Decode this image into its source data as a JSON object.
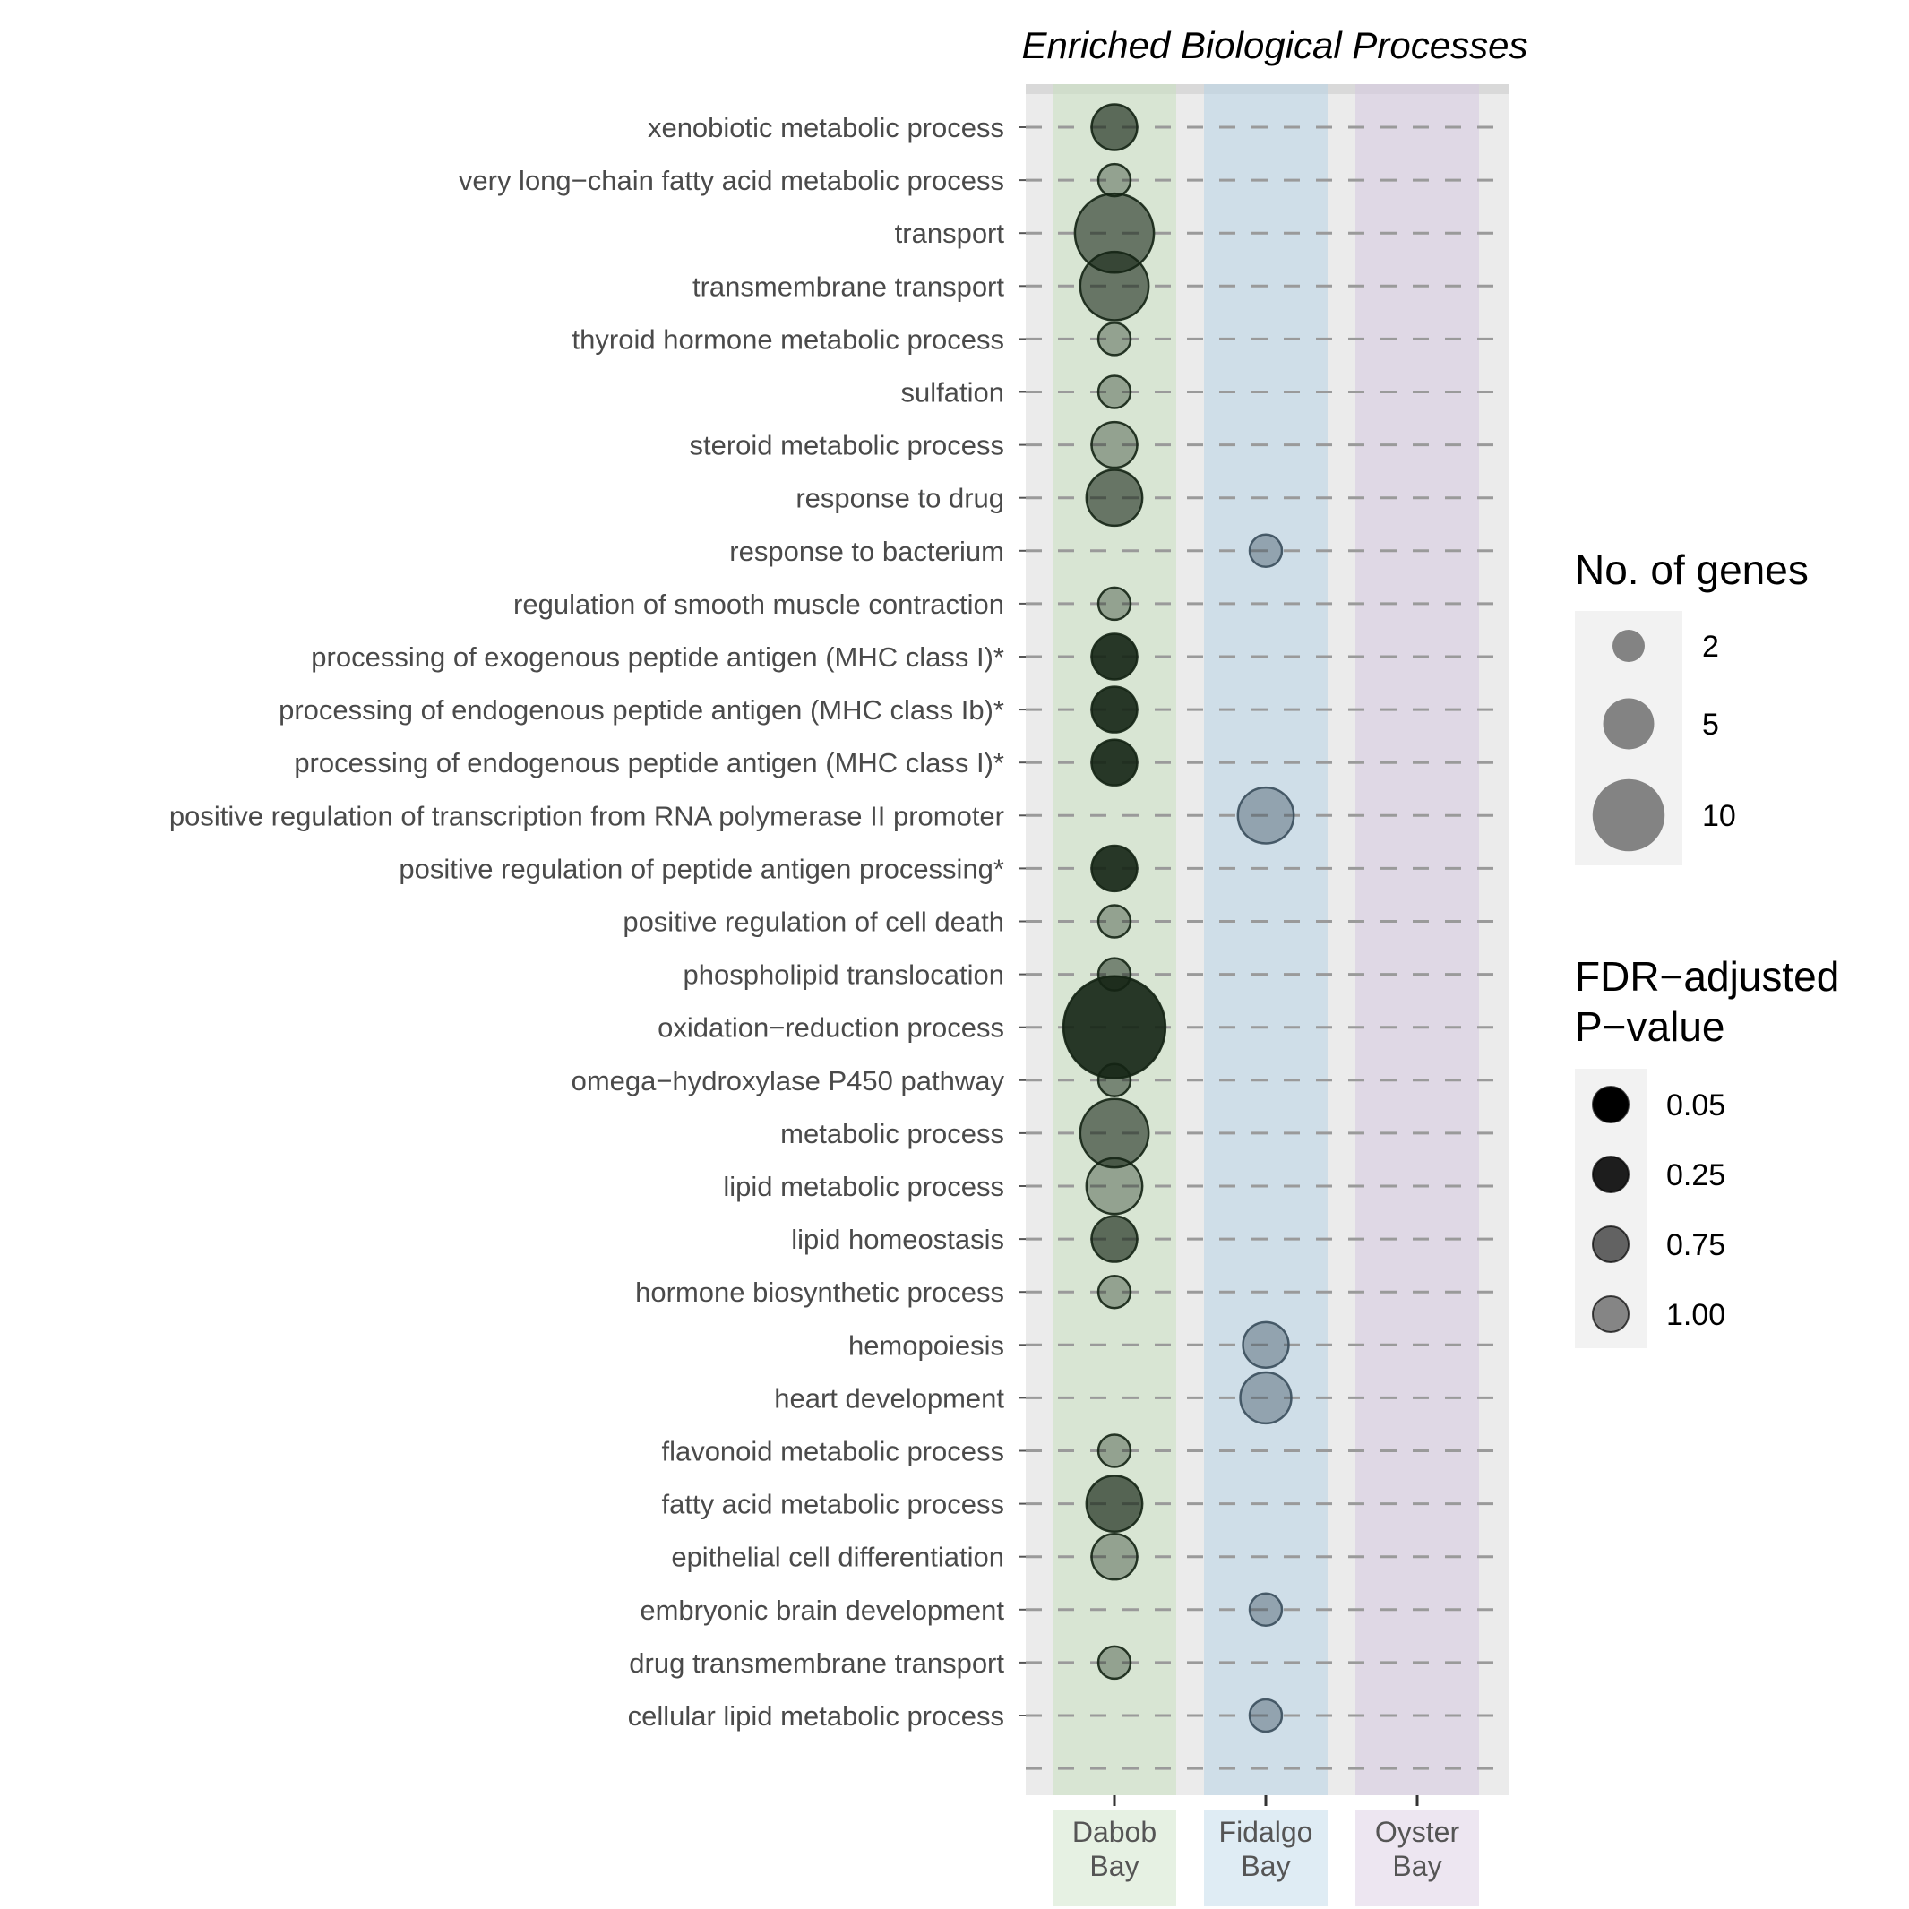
{
  "chart_data": {
    "type": "scatter",
    "title": "Enriched Biological Processes",
    "columns": [
      "Dabob Bay",
      "Fidalgo Bay",
      "Oyster Bay"
    ],
    "column_colors": {
      "Dabob Bay": "#c8e0c0",
      "Fidalgo Bay": "#b8d4e6",
      "Oyster Bay": "#d6c8e0"
    },
    "point_colors": {
      "Dabob Bay": "#142414",
      "Fidalgo Bay": "#3a4e5c"
    },
    "categories": [
      "xenobiotic metabolic process",
      "very long−chain fatty acid metabolic process",
      "transport",
      "transmembrane transport",
      "thyroid hormone metabolic process",
      "sulfation",
      "steroid metabolic process",
      "response to drug",
      "response to bacterium",
      "regulation of smooth muscle contraction",
      "processing of exogenous peptide antigen (MHC class I)*",
      "processing of endogenous peptide antigen (MHC class Ib)*",
      "processing of endogenous peptide antigen (MHC class I)*",
      "positive regulation of transcription from RNA polymerase II promoter",
      "positive regulation of peptide antigen processing*",
      "positive regulation of cell death",
      "phospholipid translocation",
      "oxidation−reduction process",
      "omega−hydroxylase P450 pathway",
      "metabolic process",
      "lipid metabolic process",
      "lipid homeostasis",
      "hormone biosynthetic process",
      "hemopoiesis",
      "heart development",
      "flavonoid metabolic process",
      "fatty acid metabolic process",
      "epithelial cell differentiation",
      "embryonic brain development",
      "drug transmembrane transport",
      "cellular lipid metabolic process"
    ],
    "points": [
      {
        "category": "xenobiotic metabolic process",
        "column": "Dabob Bay",
        "genes": 4,
        "fdr": 0.5
      },
      {
        "category": "very long−chain fatty acid metabolic process",
        "column": "Dabob Bay",
        "genes": 2,
        "fdr": 1.0
      },
      {
        "category": "transport",
        "column": "Dabob Bay",
        "genes": 12,
        "fdr": 0.6
      },
      {
        "category": "transmembrane transport",
        "column": "Dabob Bay",
        "genes": 9,
        "fdr": 0.6
      },
      {
        "category": "thyroid hormone metabolic process",
        "column": "Dabob Bay",
        "genes": 2,
        "fdr": 1.0
      },
      {
        "category": "sulfation",
        "column": "Dabob Bay",
        "genes": 2,
        "fdr": 1.0
      },
      {
        "category": "steroid metabolic process",
        "column": "Dabob Bay",
        "genes": 4,
        "fdr": 1.0
      },
      {
        "category": "response to drug",
        "column": "Dabob Bay",
        "genes": 6,
        "fdr": 0.6
      },
      {
        "category": "response to bacterium",
        "column": "Fidalgo Bay",
        "genes": 2,
        "fdr": 0.9
      },
      {
        "category": "regulation of smooth muscle contraction",
        "column": "Dabob Bay",
        "genes": 2,
        "fdr": 1.0
      },
      {
        "category": "processing of exogenous peptide antigen (MHC class I)*",
        "column": "Dabob Bay",
        "genes": 4,
        "fdr": 0.05
      },
      {
        "category": "processing of endogenous peptide antigen (MHC class Ib)*",
        "column": "Dabob Bay",
        "genes": 4,
        "fdr": 0.05
      },
      {
        "category": "processing of endogenous peptide antigen (MHC class I)*",
        "column": "Dabob Bay",
        "genes": 4,
        "fdr": 0.05
      },
      {
        "category": "positive regulation of transcription from RNA polymerase II promoter",
        "column": "Fidalgo Bay",
        "genes": 6,
        "fdr": 0.9
      },
      {
        "category": "positive regulation of peptide antigen processing*",
        "column": "Dabob Bay",
        "genes": 4,
        "fdr": 0.05
      },
      {
        "category": "positive regulation of cell death",
        "column": "Dabob Bay",
        "genes": 2,
        "fdr": 1.0
      },
      {
        "category": "phospholipid translocation",
        "column": "Dabob Bay",
        "genes": 2,
        "fdr": 0.75
      },
      {
        "category": "oxidation−reduction process",
        "column": "Dabob Bay",
        "genes": 20,
        "fdr": 0.05
      },
      {
        "category": "omega−hydroxylase P450 pathway",
        "column": "Dabob Bay",
        "genes": 2,
        "fdr": 0.75
      },
      {
        "category": "metabolic process",
        "column": "Dabob Bay",
        "genes": 9,
        "fdr": 0.6
      },
      {
        "category": "lipid metabolic process",
        "column": "Dabob Bay",
        "genes": 6,
        "fdr": 1.0
      },
      {
        "category": "lipid homeostasis",
        "column": "Dabob Bay",
        "genes": 4,
        "fdr": 0.5
      },
      {
        "category": "hormone biosynthetic process",
        "column": "Dabob Bay",
        "genes": 2,
        "fdr": 1.0
      },
      {
        "category": "hemopoiesis",
        "column": "Fidalgo Bay",
        "genes": 4,
        "fdr": 0.9
      },
      {
        "category": "heart development",
        "column": "Fidalgo Bay",
        "genes": 5,
        "fdr": 0.9
      },
      {
        "category": "flavonoid metabolic process",
        "column": "Dabob Bay",
        "genes": 2,
        "fdr": 1.0
      },
      {
        "category": "fatty acid metabolic process",
        "column": "Dabob Bay",
        "genes": 6,
        "fdr": 0.45
      },
      {
        "category": "epithelial cell differentiation",
        "column": "Dabob Bay",
        "genes": 4,
        "fdr": 1.0
      },
      {
        "category": "embryonic brain development",
        "column": "Fidalgo Bay",
        "genes": 2,
        "fdr": 0.9
      },
      {
        "category": "drug transmembrane transport",
        "column": "Dabob Bay",
        "genes": 2,
        "fdr": 1.0
      },
      {
        "category": "cellular lipid metabolic process",
        "column": "Fidalgo Bay",
        "genes": 2,
        "fdr": 0.9
      }
    ],
    "legend_size": {
      "title": "No. of genes",
      "entries": [
        {
          "label": "2",
          "value": 2
        },
        {
          "label": "5",
          "value": 5
        },
        {
          "label": "10",
          "value": 10
        }
      ]
    },
    "legend_fdr": {
      "title_line1": "FDR−adjusted",
      "title_line2": "P−value",
      "entries": [
        {
          "label": "0.05",
          "value": 0.05
        },
        {
          "label": "0.25",
          "value": 0.25
        },
        {
          "label": "0.75",
          "value": 0.75
        },
        {
          "label": "1.00",
          "value": 1.0
        }
      ]
    },
    "grid": true,
    "legend_position": "right"
  }
}
